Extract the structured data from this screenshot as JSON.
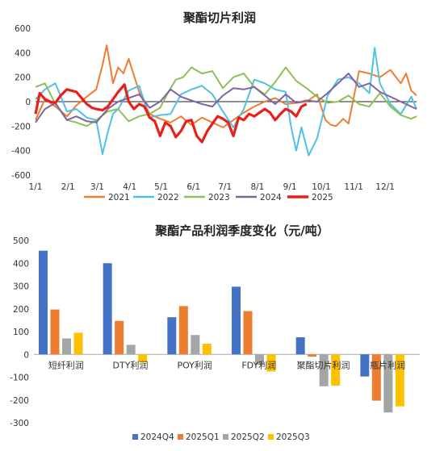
{
  "chart_data": [
    {
      "type": "line",
      "title": "聚酯切片利润",
      "ylim": [
        -600,
        600
      ],
      "yticks": [
        "600",
        "400",
        "200",
        "0",
        "-200",
        "-400",
        "-600"
      ],
      "xticks": [
        "1/1",
        "2/1",
        "3/1",
        "4/1",
        "5/1",
        "6/1",
        "7/1",
        "8/1",
        "9/1",
        "10/1",
        "11/1",
        "12/1"
      ],
      "legend_position": "bottom",
      "series": [
        {
          "name": "2021",
          "color": "#ED7D31",
          "x_day": [
            1,
            10,
            20,
            31,
            40,
            50,
            59,
            65,
            69,
            75,
            80,
            85,
            90,
            100,
            110,
            120,
            130,
            140,
            150,
            160,
            170,
            180,
            190,
            200,
            210,
            220,
            230,
            240,
            250,
            260,
            270,
            278,
            283,
            288,
            295,
            300,
            310,
            320,
            330,
            340,
            350,
            355,
            360,
            365
          ],
          "y": [
            -150,
            20,
            -40,
            -120,
            -30,
            40,
            100,
            300,
            460,
            150,
            280,
            230,
            350,
            80,
            -100,
            -140,
            -170,
            -120,
            -190,
            -130,
            -170,
            -210,
            -150,
            -90,
            -40,
            0,
            30,
            -20,
            -10,
            0,
            60,
            -150,
            -190,
            -200,
            -140,
            -180,
            250,
            230,
            200,
            260,
            150,
            230,
            90,
            50
          ]
        },
        {
          "name": "2022",
          "color": "#4FC1E9",
          "x_day": [
            1,
            10,
            20,
            31,
            40,
            50,
            59,
            65,
            70,
            75,
            80,
            90,
            100,
            110,
            120,
            130,
            140,
            150,
            160,
            170,
            180,
            190,
            200,
            210,
            220,
            230,
            240,
            245,
            250,
            255,
            262,
            270,
            280,
            290,
            300,
            310,
            320,
            325,
            330,
            340,
            350,
            360,
            365
          ],
          "y": [
            20,
            100,
            150,
            -80,
            -60,
            -130,
            -150,
            -430,
            -250,
            -100,
            -60,
            90,
            130,
            -130,
            -110,
            -100,
            60,
            100,
            130,
            60,
            -80,
            -210,
            -60,
            180,
            150,
            100,
            80,
            -200,
            -400,
            -210,
            -440,
            -300,
            50,
            180,
            200,
            150,
            70,
            440,
            150,
            -20,
            -100,
            40,
            -60
          ]
        },
        {
          "name": "2023",
          "color": "#8DC056",
          "x_day": [
            1,
            10,
            20,
            31,
            40,
            50,
            59,
            70,
            80,
            90,
            100,
            110,
            120,
            128,
            135,
            142,
            150,
            160,
            170,
            180,
            190,
            200,
            210,
            220,
            230,
            240,
            250,
            260,
            270,
            280,
            290,
            300,
            310,
            320,
            330,
            340,
            350,
            360,
            365
          ],
          "y": [
            120,
            150,
            -20,
            -150,
            -170,
            -200,
            -150,
            -80,
            -60,
            -160,
            -120,
            -100,
            -50,
            80,
            180,
            200,
            280,
            230,
            250,
            110,
            200,
            230,
            120,
            60,
            160,
            280,
            170,
            110,
            40,
            -10,
            0,
            50,
            -20,
            -40,
            70,
            -40,
            -110,
            -140,
            -120
          ]
        },
        {
          "name": "2024",
          "color": "#8064A2",
          "x_day": [
            1,
            10,
            20,
            31,
            40,
            50,
            59,
            70,
            80,
            90,
            100,
            110,
            120,
            130,
            140,
            150,
            160,
            170,
            180,
            190,
            200,
            210,
            220,
            230,
            240,
            250,
            260,
            270,
            280,
            290,
            300,
            310,
            320,
            330,
            340,
            350,
            360,
            365
          ],
          "y": [
            -170,
            -60,
            -10,
            -150,
            -120,
            -160,
            -170,
            -60,
            0,
            30,
            60,
            -50,
            0,
            100,
            40,
            10,
            -20,
            -40,
            50,
            110,
            100,
            120,
            50,
            -20,
            60,
            -10,
            10,
            0,
            70,
            150,
            230,
            120,
            150,
            80,
            40,
            0,
            -40,
            -60
          ]
        },
        {
          "name": "2025",
          "color": "#E8201A",
          "x_day": [
            1,
            5,
            10,
            15,
            20,
            25,
            31,
            40,
            50,
            55,
            59,
            65,
            70,
            75,
            80,
            86,
            90,
            95,
            100,
            105,
            110,
            115,
            120,
            125,
            130,
            135,
            140,
            145,
            150,
            155,
            160,
            165,
            170,
            175,
            180,
            185,
            190,
            195,
            200,
            205,
            210,
            215,
            220,
            225,
            230,
            235,
            240,
            245,
            250,
            255,
            260
          ],
          "y": [
            -100,
            70,
            20,
            0,
            -10,
            50,
            100,
            80,
            -20,
            -50,
            -60,
            -70,
            -40,
            20,
            80,
            140,
            0,
            -60,
            -20,
            -40,
            -130,
            -160,
            -280,
            -170,
            -200,
            -290,
            -240,
            -160,
            -150,
            -280,
            -330,
            -240,
            -180,
            -120,
            -140,
            -170,
            -280,
            -130,
            -150,
            -100,
            -120,
            -90,
            -60,
            -90,
            -150,
            -100,
            -60,
            -80,
            -120,
            -40,
            -20
          ]
        }
      ]
    },
    {
      "type": "bar",
      "title": "聚酯产品利润季度变化（元/吨）",
      "ylim": [
        -300,
        500
      ],
      "yticks": [
        "500",
        "400",
        "300",
        "200",
        "100",
        "0",
        "-100",
        "-200",
        "-300"
      ],
      "categories": [
        "短纤利润",
        "DTY利润",
        "POY利润",
        "FDY利润",
        "聚酯切片利润",
        "瓶片利润"
      ],
      "legend_position": "bottom",
      "series": [
        {
          "name": "2024Q4",
          "color": "#4472C4",
          "values": [
            455,
            400,
            163,
            297,
            75,
            -97
          ]
        },
        {
          "name": "2025Q1",
          "color": "#ED7D31",
          "values": [
            197,
            147,
            212,
            190,
            -10,
            -203
          ]
        },
        {
          "name": "2025Q2",
          "color": "#A5A5A5",
          "values": [
            70,
            42,
            85,
            -45,
            -140,
            -255
          ]
        },
        {
          "name": "2025Q3",
          "color": "#FFC000",
          "values": [
            95,
            -35,
            47,
            -75,
            -137,
            -228
          ]
        }
      ]
    }
  ]
}
